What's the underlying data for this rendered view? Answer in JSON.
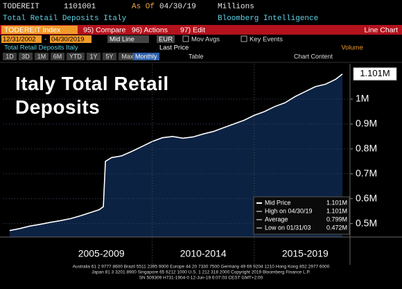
{
  "header": {
    "ticker": "TODEREIT",
    "code": "1101001",
    "as_of_label": "As Of",
    "as_of_date": "04/30/19",
    "units": "Millions",
    "description": "Total Retail Deposits Italy",
    "source": "Bloomberg Intelligence"
  },
  "toolbar": {
    "security": "TODEREIT Index",
    "buttons": [
      "95) Compare",
      "96) Actions",
      "97) Edit"
    ],
    "view": "Line Chart"
  },
  "controls": {
    "start_date": "12/31/2002",
    "dash": "-",
    "end_date": "04/30/2019",
    "line_type": "Mid Line",
    "currency": "EUR",
    "options": [
      "Mov Avgs",
      "Key Events"
    ],
    "series_label": "Total Retail Deposits Italy",
    "field": "Last Price",
    "volume": "Volume",
    "periods": [
      "1D",
      "3D",
      "1M",
      "6M",
      "YTD",
      "1Y",
      "5Y",
      "Max"
    ],
    "frequency": "Monthly",
    "table": "Table",
    "chart_content": "Chart Content"
  },
  "chart_data": {
    "type": "area",
    "title": "Italy Total Retail Deposits",
    "x": [
      2003.0,
      2003.5,
      2004.0,
      2004.5,
      2005.0,
      2005.5,
      2006.0,
      2006.5,
      2007.0,
      2007.4,
      2007.6,
      2007.7,
      2008.0,
      2008.5,
      2009.0,
      2009.5,
      2010.0,
      2010.5,
      2011.0,
      2011.5,
      2012.0,
      2012.5,
      2013.0,
      2013.5,
      2014.0,
      2014.5,
      2015.0,
      2015.5,
      2016.0,
      2016.5,
      2017.0,
      2017.5,
      2018.0,
      2018.5,
      2019.0,
      2019.33
    ],
    "values": [
      0.472,
      0.48,
      0.49,
      0.497,
      0.505,
      0.512,
      0.52,
      0.532,
      0.545,
      0.556,
      0.568,
      0.75,
      0.765,
      0.772,
      0.79,
      0.81,
      0.83,
      0.845,
      0.85,
      0.843,
      0.848,
      0.86,
      0.87,
      0.885,
      0.9,
      0.915,
      0.935,
      0.95,
      0.97,
      0.985,
      1.01,
      1.03,
      1.05,
      1.06,
      1.08,
      1.101
    ],
    "color": "#ffffff",
    "fill": "#0c2242",
    "xlim": [
      2002.7,
      2019.7
    ],
    "xticks": [
      {
        "value": 2007.5,
        "label": "2005-2009"
      },
      {
        "value": 2012.5,
        "label": "2010-2014"
      },
      {
        "value": 2017.5,
        "label": "2015-2019"
      }
    ],
    "ylim": [
      0.446,
      1.142
    ],
    "yticks": [
      {
        "value": 0.5,
        "label": "0.5M"
      },
      {
        "value": 0.6,
        "label": "0.6M"
      },
      {
        "value": 0.7,
        "label": "0.7M"
      },
      {
        "value": 0.8,
        "label": "0.8M"
      },
      {
        "value": 0.9,
        "label": "0.9M"
      },
      {
        "value": 1,
        "label": "1M"
      }
    ],
    "grid": true,
    "legend": [
      {
        "label": "Mid Price",
        "value": "1.101M"
      },
      {
        "label": "High on 04/30/19",
        "value": "1.101M"
      },
      {
        "label": "Average",
        "value": "0.799M"
      },
      {
        "label": "Low on 01/31/03",
        "value": "0.472M"
      }
    ]
  },
  "footer": [
    "Australia 61 2 9777 8600 Brazil 5511 2395 9000 Europe 44 20 7330 7500 Germany 49 69 9204 1210 Hong Kong 852 2977 6000",
    "Japan 81 3 3201 8900        Singapore 65 6212 1000        U.S. 1 212 318 2000        Copyright 2019 Bloomberg Finance L.P.",
    "SN 509309 H731-1904-0 12-Jun-19  6:07:03 CEST GMT+2:00"
  ]
}
